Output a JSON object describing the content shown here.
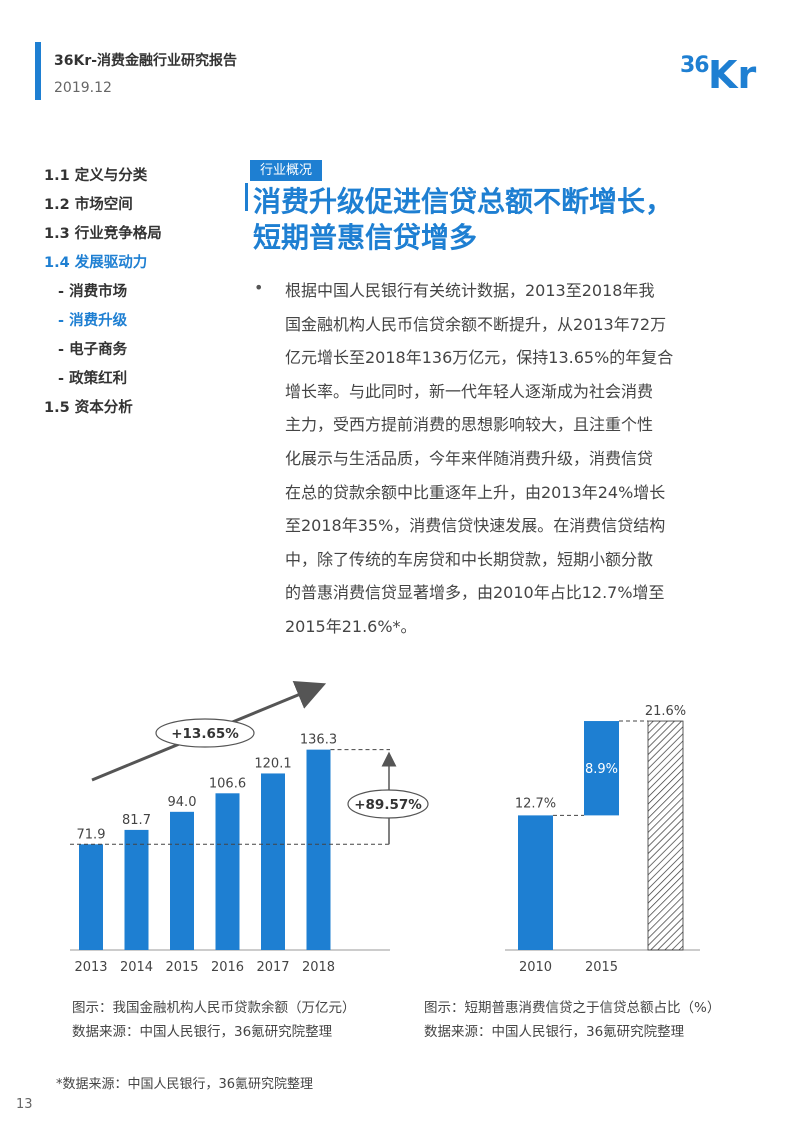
{
  "header": {
    "title": "36Kr-消费金融行业研究报告",
    "date": "2019.12"
  },
  "logo": {
    "text": "36Kr"
  },
  "toc": {
    "items": [
      {
        "label": "1.1 定义与分类",
        "active": false,
        "sub": false
      },
      {
        "label": "1.2 市场空间",
        "active": false,
        "sub": false
      },
      {
        "label": "1.3 行业竞争格局",
        "active": false,
        "sub": false
      },
      {
        "label": "1.4 发展驱动力",
        "active": true,
        "sub": false
      },
      {
        "label": "- 消费市场",
        "active": false,
        "sub": true
      },
      {
        "label": "- 消费升级",
        "active": true,
        "sub": true
      },
      {
        "label": "- 电子商务",
        "active": false,
        "sub": true
      },
      {
        "label": "- 政策红利",
        "active": false,
        "sub": true
      },
      {
        "label": "1.5 资本分析",
        "active": false,
        "sub": false
      }
    ]
  },
  "section": {
    "tag": "行业概况",
    "title_line1": "消费升级促进信贷总额不断增长，",
    "title_line2": "短期普惠信贷增多",
    "bullet": "•",
    "paragraph_lines": [
      "根据中国人民银行有关统计数据，2013至2018年我",
      "国金融机构人民币信贷余额不断提升，从2013年72万",
      "亿元增长至2018年136万亿元，保持13.65%的年复合",
      "增长率。与此同时，新一代年轻人逐渐成为社会消费",
      "主力，受西方提前消费的思想影响较大，且注重个性",
      "化展示与生活品质，今年来伴随消费升级，消费信贷",
      "在总的贷款余额中比重逐年上升，由2013年24%增长",
      "至2018年35%，消费信贷快速发展。在消费信贷结构",
      "中，除了传统的车房贷和中长期贷款，短期小额分散",
      "的普惠消费信贷显著增多，由2010年占比12.7%增至",
      "2015年21.6%*。"
    ]
  },
  "chart_data": [
    {
      "type": "bar",
      "categories": [
        "2013",
        "2014",
        "2015",
        "2016",
        "2017",
        "2018"
      ],
      "values": [
        71.9,
        81.7,
        94.0,
        106.6,
        120.1,
        136.3
      ],
      "value_labels": [
        "71.9",
        "81.7",
        "94.0",
        "106.6",
        "120.1",
        "136.3"
      ],
      "annotations": {
        "cagr": "+13.65%",
        "total_growth": "+89.57%"
      },
      "bar_color": "#1e7fd2",
      "ylim": [
        0,
        140
      ],
      "caption": "图示：我国金融机构人民币贷款余额（万亿元）",
      "source": "数据来源：中国人民银行，36氪研究院整理"
    },
    {
      "type": "bar",
      "categories": [
        "2010",
        "2015"
      ],
      "values": [
        12.7,
        21.6
      ],
      "increment": 8.9,
      "labels": {
        "start": "12.7%",
        "delta": "8.9%",
        "end": "21.6%"
      },
      "bar_color": "#1e7fd2",
      "ylim": [
        0,
        25
      ],
      "caption": "图示：短期普惠消费信贷之于信贷总额占比（%）",
      "source": "数据来源：中国人民银行，36氪研究院整理"
    }
  ],
  "footnote": "*数据来源：中国人民银行，36氪研究院整理",
  "page_number": "13"
}
